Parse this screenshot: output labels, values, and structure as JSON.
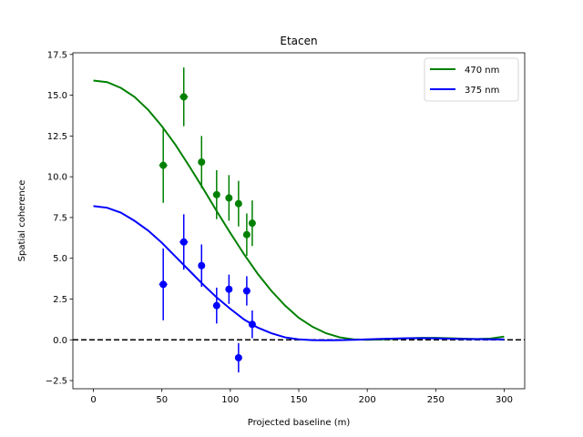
{
  "chart_data": {
    "type": "scatter",
    "title": "Etacen",
    "xlabel": "Projected baseline (m)",
    "ylabel": "Spatial coherence",
    "xlim": [
      -15,
      315
    ],
    "ylim": [
      -3,
      17.6
    ],
    "xticks": [
      0,
      50,
      100,
      150,
      200,
      250,
      300
    ],
    "yticks": [
      -2.5,
      0.0,
      2.5,
      5.0,
      7.5,
      10.0,
      12.5,
      15.0,
      17.5
    ],
    "xtick_labels": [
      "0",
      "50",
      "100",
      "150",
      "200",
      "250",
      "300"
    ],
    "ytick_labels": [
      "−2.5",
      "0.0",
      "2.5",
      "5.0",
      "7.5",
      "10.0",
      "12.5",
      "15.0",
      "17.5"
    ],
    "legend_position": "top-right",
    "reference_line": {
      "y": 0,
      "style": "dashed",
      "color": "#000000"
    },
    "series": [
      {
        "name": "470 nm",
        "color": "#008000",
        "points": [
          {
            "x": 51,
            "y": 10.7,
            "yerr": 2.3,
            "xerr": 3
          },
          {
            "x": 66,
            "y": 14.9,
            "yerr": 1.8,
            "xerr": 3
          },
          {
            "x": 79,
            "y": 10.9,
            "yerr": 1.6,
            "xerr": 0
          },
          {
            "x": 90,
            "y": 8.9,
            "yerr": 1.5,
            "xerr": 0
          },
          {
            "x": 99,
            "y": 8.7,
            "yerr": 1.4,
            "xerr": 0
          },
          {
            "x": 106,
            "y": 8.35,
            "yerr": 1.4,
            "xerr": 0
          },
          {
            "x": 112,
            "y": 6.45,
            "yerr": 1.3,
            "xerr": 0
          },
          {
            "x": 116,
            "y": 7.15,
            "yerr": 1.4,
            "xerr": 0
          }
        ],
        "curve": [
          [
            0,
            15.9
          ],
          [
            10,
            15.8
          ],
          [
            20,
            15.45
          ],
          [
            30,
            14.9
          ],
          [
            40,
            14.1
          ],
          [
            50,
            13.1
          ],
          [
            60,
            11.95
          ],
          [
            70,
            10.65
          ],
          [
            80,
            9.3
          ],
          [
            90,
            7.9
          ],
          [
            100,
            6.55
          ],
          [
            110,
            5.25
          ],
          [
            120,
            4.05
          ],
          [
            130,
            3.0
          ],
          [
            140,
            2.1
          ],
          [
            150,
            1.35
          ],
          [
            160,
            0.8
          ],
          [
            170,
            0.4
          ],
          [
            180,
            0.15
          ],
          [
            190,
            0.03
          ],
          [
            200,
            0.0
          ],
          [
            210,
            0.02
          ],
          [
            220,
            0.06
          ],
          [
            230,
            0.1
          ],
          [
            240,
            0.12
          ],
          [
            250,
            0.12
          ],
          [
            260,
            0.1
          ],
          [
            270,
            0.07
          ],
          [
            280,
            0.05
          ],
          [
            290,
            0.08
          ],
          [
            300,
            0.2
          ]
        ]
      },
      {
        "name": "375 nm",
        "color": "#0000ff",
        "points": [
          {
            "x": 51,
            "y": 3.4,
            "yerr": 2.2,
            "xerr": 3
          },
          {
            "x": 66,
            "y": 6.0,
            "yerr": 1.7,
            "xerr": 3
          },
          {
            "x": 79,
            "y": 4.55,
            "yerr": 1.3,
            "xerr": 0
          },
          {
            "x": 90,
            "y": 2.1,
            "yerr": 1.1,
            "xerr": 0
          },
          {
            "x": 99,
            "y": 3.1,
            "yerr": 0.9,
            "xerr": 0
          },
          {
            "x": 106,
            "y": -1.1,
            "yerr": 0.9,
            "xerr": 0
          },
          {
            "x": 112,
            "y": 3.0,
            "yerr": 0.9,
            "xerr": 0
          },
          {
            "x": 116,
            "y": 0.95,
            "yerr": 0.85,
            "xerr": 0
          }
        ],
        "curve": [
          [
            0,
            8.2
          ],
          [
            10,
            8.1
          ],
          [
            20,
            7.8
          ],
          [
            30,
            7.3
          ],
          [
            40,
            6.7
          ],
          [
            50,
            5.95
          ],
          [
            60,
            5.1
          ],
          [
            70,
            4.25
          ],
          [
            80,
            3.4
          ],
          [
            90,
            2.6
          ],
          [
            100,
            1.9
          ],
          [
            110,
            1.25
          ],
          [
            120,
            0.75
          ],
          [
            130,
            0.4
          ],
          [
            140,
            0.15
          ],
          [
            150,
            0.03
          ],
          [
            160,
            -0.02
          ],
          [
            170,
            -0.03
          ],
          [
            180,
            -0.02
          ],
          [
            190,
            0.0
          ],
          [
            200,
            0.03
          ],
          [
            210,
            0.06
          ],
          [
            220,
            0.08
          ],
          [
            230,
            0.1
          ],
          [
            240,
            0.1
          ],
          [
            250,
            0.09
          ],
          [
            260,
            0.07
          ],
          [
            270,
            0.05
          ],
          [
            280,
            0.04
          ],
          [
            290,
            0.03
          ],
          [
            300,
            0.03
          ]
        ]
      }
    ]
  }
}
